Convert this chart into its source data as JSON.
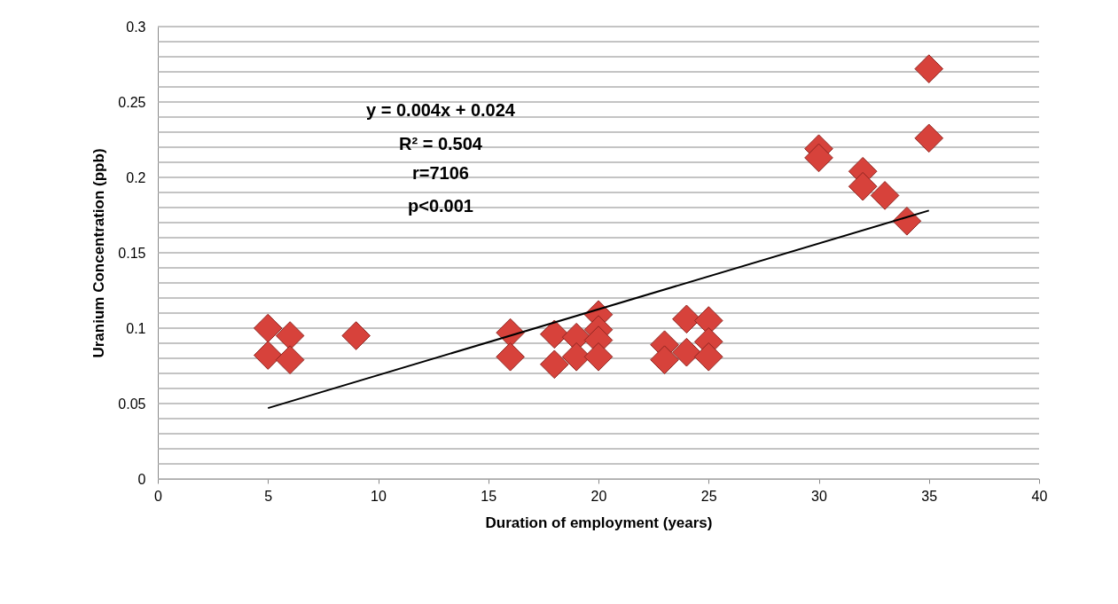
{
  "chart_data": {
    "type": "scatter",
    "xlabel": "Duration of employment (years)",
    "ylabel": "Uranium Concentration (ppb)",
    "annotations": [
      "y = 0.004x + 0.024",
      "R² = 0.504",
      "r=7106",
      "p<0.001"
    ],
    "xlim": [
      0,
      40
    ],
    "xticks": [
      0,
      5,
      10,
      15,
      20,
      25,
      30,
      35,
      40
    ],
    "ylim": [
      0,
      0.3
    ],
    "yticks": [
      0,
      {
        "value": 0.01,
        "label": null
      },
      {
        "value": 0.02,
        "label": null
      },
      {
        "value": 0.03,
        "label": null
      },
      {
        "value": 0.04,
        "label": null
      },
      0.05,
      {
        "value": 0.06,
        "label": null
      },
      {
        "value": 0.07,
        "label": null
      },
      {
        "value": 0.08,
        "label": null
      },
      {
        "value": 0.09,
        "label": null
      },
      0.1,
      {
        "value": 0.11,
        "label": null
      },
      {
        "value": 0.12,
        "label": null
      },
      {
        "value": 0.13,
        "label": null
      },
      {
        "value": 0.14,
        "label": null
      },
      0.15,
      {
        "value": 0.16,
        "label": null
      },
      {
        "value": 0.17,
        "label": null
      },
      {
        "value": 0.18,
        "label": null
      },
      {
        "value": 0.19,
        "label": null
      },
      0.2,
      {
        "value": 0.21,
        "label": null
      },
      {
        "value": 0.22,
        "label": null
      },
      {
        "value": 0.23,
        "label": null
      },
      {
        "value": 0.24,
        "label": null
      },
      0.25,
      {
        "value": 0.26,
        "label": null
      },
      {
        "value": 0.27,
        "label": null
      },
      {
        "value": 0.28,
        "label": null
      },
      {
        "value": 0.29,
        "label": null
      },
      0.3
    ],
    "grid": "y",
    "series": [
      {
        "type": "scatter",
        "marker": "diamond",
        "color": "#d7423b",
        "x": [
          5,
          5,
          6,
          6,
          9,
          16,
          16,
          18,
          18,
          19,
          19,
          20,
          20,
          20,
          20,
          23,
          23,
          24,
          24,
          25,
          25,
          25,
          30,
          30,
          32,
          32,
          33,
          34,
          35,
          35
        ],
        "values": [
          0.1,
          0.082,
          0.095,
          0.079,
          0.095,
          0.097,
          0.081,
          0.096,
          0.076,
          0.094,
          0.081,
          0.109,
          0.099,
          0.092,
          0.081,
          0.089,
          0.079,
          0.106,
          0.084,
          0.105,
          0.091,
          0.081,
          0.219,
          0.213,
          0.204,
          0.194,
          0.188,
          0.171,
          0.272,
          0.226
        ]
      },
      {
        "type": "line",
        "marker": "none",
        "color": "#000000",
        "line_style": "solid",
        "x": [
          5,
          35
        ],
        "values": [
          0.047,
          0.178
        ]
      }
    ]
  }
}
